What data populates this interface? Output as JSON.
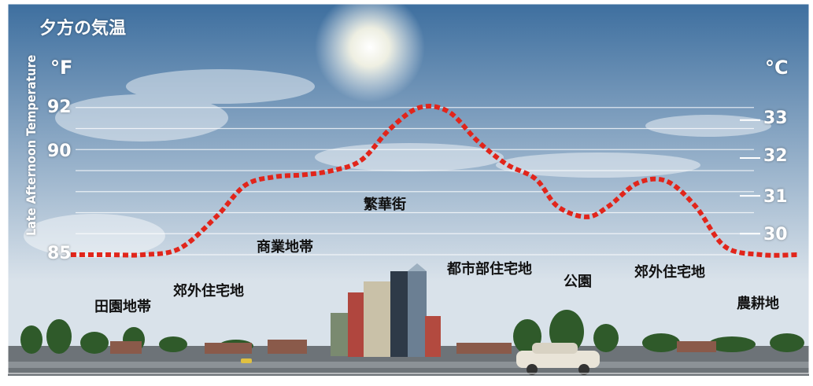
{
  "chart_data": {
    "type": "line",
    "title": "夕方の気温",
    "ylabel": "Late Afternoon Temperature",
    "y_unit_left": "°F",
    "y_unit_right": "°C",
    "left_ticks": [
      "92",
      "90",
      "85"
    ],
    "right_ticks": [
      "33",
      "32",
      "31",
      "30"
    ],
    "ylim_f": [
      85,
      93
    ],
    "grid": true,
    "zones": [
      "田園地帯",
      "郊外住宅地",
      "商業地帯",
      "繁華街",
      "都市部住宅地",
      "公園",
      "郊外住宅地",
      "農耕地"
    ],
    "series": [
      {
        "points": [
          {
            "x": 0,
            "y": 85.0
          },
          {
            "x": 5,
            "y": 85.0
          },
          {
            "x": 10,
            "y": 85.0
          },
          {
            "x": 15,
            "y": 85.3
          },
          {
            "x": 20,
            "y": 86.8
          },
          {
            "x": 24,
            "y": 88.3
          },
          {
            "x": 28,
            "y": 88.7
          },
          {
            "x": 32,
            "y": 88.8
          },
          {
            "x": 36,
            "y": 89.0
          },
          {
            "x": 40,
            "y": 89.5
          },
          {
            "x": 44,
            "y": 91.0
          },
          {
            "x": 48,
            "y": 92.0
          },
          {
            "x": 52,
            "y": 91.8
          },
          {
            "x": 56,
            "y": 90.4
          },
          {
            "x": 60,
            "y": 89.3
          },
          {
            "x": 64,
            "y": 88.6
          },
          {
            "x": 67,
            "y": 87.3
          },
          {
            "x": 71,
            "y": 86.8
          },
          {
            "x": 74,
            "y": 87.3
          },
          {
            "x": 78,
            "y": 88.4
          },
          {
            "x": 82,
            "y": 88.5
          },
          {
            "x": 86,
            "y": 87.3
          },
          {
            "x": 90,
            "y": 85.4
          },
          {
            "x": 95,
            "y": 85.0
          },
          {
            "x": 100,
            "y": 85.0
          }
        ]
      }
    ],
    "colors": {
      "curve": "#e1251b",
      "grid": "#ffffff",
      "sky_top": "#3e6f9f",
      "sky_bottom": "#d9e2ea",
      "ground": "#6d7378"
    }
  }
}
